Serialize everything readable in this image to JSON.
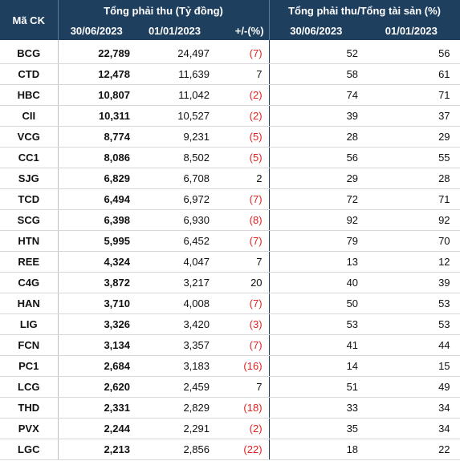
{
  "header": {
    "code": "Mã CK",
    "group_receivables": "Tổng phải thu (Tỷ đồng)",
    "group_ratio": "Tổng phải thu/Tổng tài sản (%)",
    "date_1": "30/06/2023",
    "date_2": "01/01/2023",
    "change": "+/-(%)",
    "ratio_date_1": "30/06/2023",
    "ratio_date_2": "01/01/2023"
  },
  "rows": [
    {
      "code": "BCG",
      "rec_2023_06": "22,789",
      "rec_2023_01": "24,497",
      "change": "(7)",
      "negative": true,
      "ratio_2023_06": "52",
      "ratio_2023_01": "56"
    },
    {
      "code": "CTD",
      "rec_2023_06": "12,478",
      "rec_2023_01": "11,639",
      "change": "7",
      "negative": false,
      "ratio_2023_06": "58",
      "ratio_2023_01": "61"
    },
    {
      "code": "HBC",
      "rec_2023_06": "10,807",
      "rec_2023_01": "11,042",
      "change": "(2)",
      "negative": true,
      "ratio_2023_06": "74",
      "ratio_2023_01": "71"
    },
    {
      "code": "CII",
      "rec_2023_06": "10,311",
      "rec_2023_01": "10,527",
      "change": "(2)",
      "negative": true,
      "ratio_2023_06": "39",
      "ratio_2023_01": "37"
    },
    {
      "code": "VCG",
      "rec_2023_06": "8,774",
      "rec_2023_01": "9,231",
      "change": "(5)",
      "negative": true,
      "ratio_2023_06": "28",
      "ratio_2023_01": "29"
    },
    {
      "code": "CC1",
      "rec_2023_06": "8,086",
      "rec_2023_01": "8,502",
      "change": "(5)",
      "negative": true,
      "ratio_2023_06": "56",
      "ratio_2023_01": "55"
    },
    {
      "code": "SJG",
      "rec_2023_06": "6,829",
      "rec_2023_01": "6,708",
      "change": "2",
      "negative": false,
      "ratio_2023_06": "29",
      "ratio_2023_01": "28"
    },
    {
      "code": "TCD",
      "rec_2023_06": "6,494",
      "rec_2023_01": "6,972",
      "change": "(7)",
      "negative": true,
      "ratio_2023_06": "72",
      "ratio_2023_01": "71"
    },
    {
      "code": "SCG",
      "rec_2023_06": "6,398",
      "rec_2023_01": "6,930",
      "change": "(8)",
      "negative": true,
      "ratio_2023_06": "92",
      "ratio_2023_01": "92"
    },
    {
      "code": "HTN",
      "rec_2023_06": "5,995",
      "rec_2023_01": "6,452",
      "change": "(7)",
      "negative": true,
      "ratio_2023_06": "79",
      "ratio_2023_01": "70"
    },
    {
      "code": "REE",
      "rec_2023_06": "4,324",
      "rec_2023_01": "4,047",
      "change": "7",
      "negative": false,
      "ratio_2023_06": "13",
      "ratio_2023_01": "12"
    },
    {
      "code": "C4G",
      "rec_2023_06": "3,872",
      "rec_2023_01": "3,217",
      "change": "20",
      "negative": false,
      "ratio_2023_06": "40",
      "ratio_2023_01": "39"
    },
    {
      "code": "HAN",
      "rec_2023_06": "3,710",
      "rec_2023_01": "4,008",
      "change": "(7)",
      "negative": true,
      "ratio_2023_06": "50",
      "ratio_2023_01": "53"
    },
    {
      "code": "LIG",
      "rec_2023_06": "3,326",
      "rec_2023_01": "3,420",
      "change": "(3)",
      "negative": true,
      "ratio_2023_06": "53",
      "ratio_2023_01": "53"
    },
    {
      "code": "FCN",
      "rec_2023_06": "3,134",
      "rec_2023_01": "3,357",
      "change": "(7)",
      "negative": true,
      "ratio_2023_06": "41",
      "ratio_2023_01": "44"
    },
    {
      "code": "PC1",
      "rec_2023_06": "2,684",
      "rec_2023_01": "3,183",
      "change": "(16)",
      "negative": true,
      "ratio_2023_06": "14",
      "ratio_2023_01": "15"
    },
    {
      "code": "LCG",
      "rec_2023_06": "2,620",
      "rec_2023_01": "2,459",
      "change": "7",
      "negative": false,
      "ratio_2023_06": "51",
      "ratio_2023_01": "49"
    },
    {
      "code": "THD",
      "rec_2023_06": "2,331",
      "rec_2023_01": "2,829",
      "change": "(18)",
      "negative": true,
      "ratio_2023_06": "33",
      "ratio_2023_01": "34"
    },
    {
      "code": "PVX",
      "rec_2023_06": "2,244",
      "rec_2023_01": "2,291",
      "change": "(2)",
      "negative": true,
      "ratio_2023_06": "35",
      "ratio_2023_01": "34"
    },
    {
      "code": "LGC",
      "rec_2023_06": "2,213",
      "rec_2023_01": "2,856",
      "change": "(22)",
      "negative": true,
      "ratio_2023_06": "18",
      "ratio_2023_01": "22"
    }
  ]
}
